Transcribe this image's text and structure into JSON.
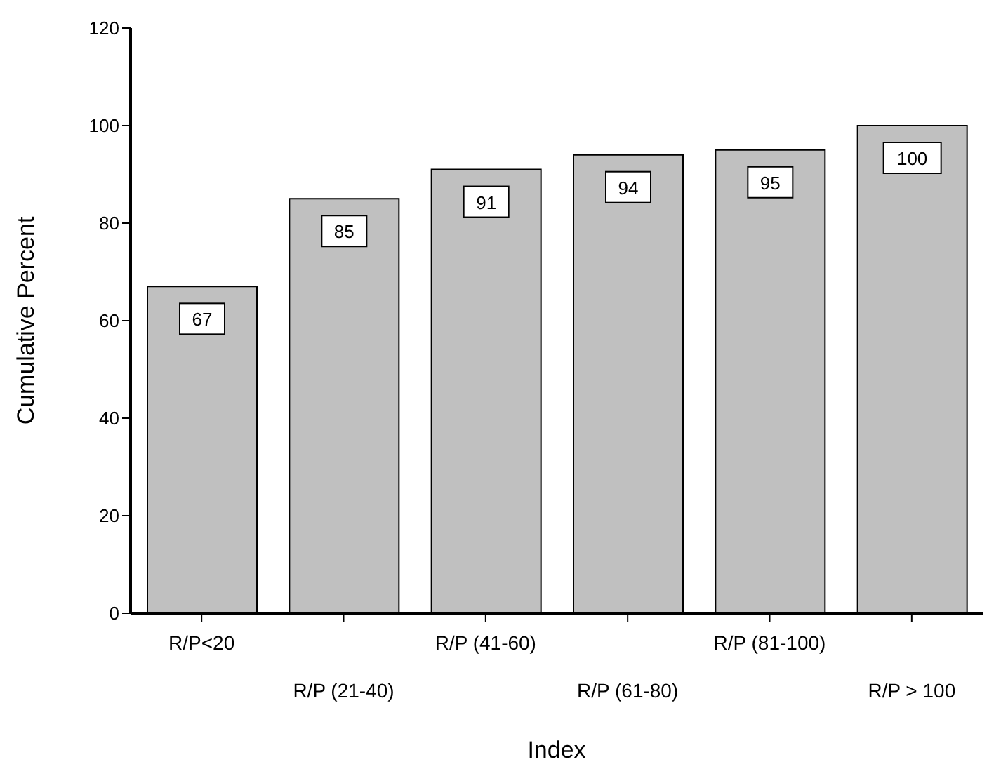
{
  "chart_data": {
    "type": "bar",
    "xlabel": "Index",
    "ylabel": "Cumulative Percent",
    "categories": [
      "R/P<20",
      "R/P (21-40)",
      "R/P (41-60)",
      "R/P (61-80)",
      "R/P (81-100)",
      "R/P > 100"
    ],
    "values": [
      67,
      85,
      91,
      94,
      95,
      100
    ],
    "color": "#c0c0c0",
    "ylim": [
      0,
      120
    ],
    "yticks": [
      0,
      20,
      40,
      60,
      80,
      100,
      120
    ],
    "grid": false,
    "data_labels": true
  }
}
